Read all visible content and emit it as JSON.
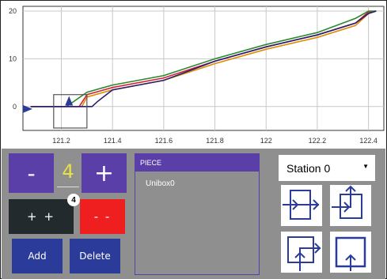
{
  "chart_data": {
    "type": "line",
    "xlim": [
      121.05,
      122.46
    ],
    "ylim": [
      -5,
      21
    ],
    "xticks": [
      121.2,
      121.4,
      121.6,
      121.8,
      122,
      122.2,
      122.4
    ],
    "xtick_labels": [
      "121.2",
      "121.4",
      "121.6",
      "121.8",
      "122",
      "122.2",
      "122.4"
    ],
    "yticks": [
      0,
      10,
      20
    ],
    "ytick_labels": [
      "0",
      "10",
      "20"
    ],
    "grid": true,
    "colors": [
      "#e08a00",
      "#d61f3a",
      "#2a8a2a",
      "#2a1f6e"
    ],
    "series": [
      {
        "x": [
          121.08,
          121.28,
          121.3,
          121.4,
          121.6,
          121.8,
          122.0,
          122.2,
          122.35,
          122.4,
          122.43
        ],
        "y": [
          0,
          0,
          2,
          3.5,
          5.5,
          9,
          12,
          14.5,
          17,
          19.5,
          20
        ]
      },
      {
        "x": [
          121.08,
          121.27,
          121.3,
          121.4,
          121.6,
          121.8,
          122.0,
          122.2,
          122.35,
          122.4,
          122.43
        ],
        "y": [
          0,
          0,
          2.5,
          4,
          6,
          9.5,
          12.5,
          15,
          17.5,
          19.8,
          20
        ]
      },
      {
        "x": [
          121.08,
          121.22,
          121.3,
          121.4,
          121.6,
          121.8,
          122.0,
          122.2,
          122.35,
          122.4,
          122.43
        ],
        "y": [
          0,
          0,
          3,
          4.5,
          6.5,
          10,
          13,
          15.5,
          18.5,
          20,
          20
        ]
      },
      {
        "x": [
          121.08,
          121.32,
          121.34,
          121.4,
          121.6,
          121.8,
          122.0,
          122.2,
          122.35,
          122.4,
          122.43
        ],
        "y": [
          0,
          0,
          1,
          3.5,
          5.5,
          9.5,
          12.5,
          15,
          17.5,
          19.5,
          20
        ]
      }
    ],
    "highlight_box": {
      "x": [
        121.17,
        121.3
      ],
      "y": [
        -4.5,
        2.5
      ]
    }
  },
  "controls": {
    "minus_label": "-",
    "plus_label": "+",
    "count": "4",
    "plus_plus_label": "+ +",
    "badge_count": "4",
    "minus_minus_label": "- -",
    "add_label": "Add",
    "delete_label": "Delete"
  },
  "piece_panel": {
    "header": "PIECE",
    "items": [
      "Unibox0"
    ]
  },
  "station": {
    "selected": "Station 0"
  },
  "connection_options": [
    "flow-through-right",
    "flow-right-up",
    "flow-up-right",
    "flow-up"
  ]
}
